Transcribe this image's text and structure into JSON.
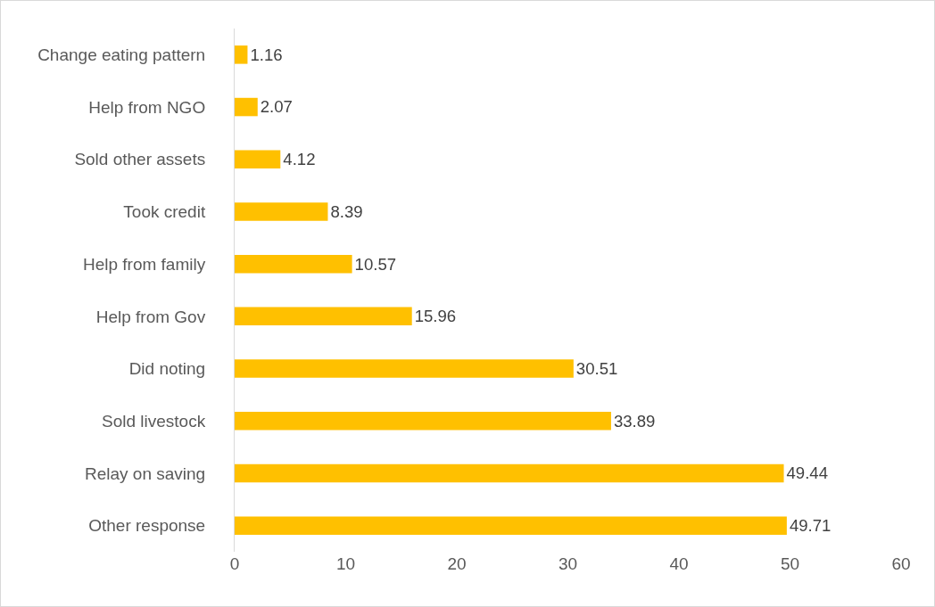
{
  "chart_data": {
    "type": "bar",
    "orientation": "horizontal",
    "categories": [
      "Change eating pattern",
      "Help from NGO",
      "Sold other assets",
      "Took credit",
      "Help from family",
      "Help from Gov",
      "Did noting",
      "Sold livestock",
      "Relay on saving",
      "Other response"
    ],
    "values": [
      1.16,
      2.07,
      4.12,
      8.39,
      10.57,
      15.96,
      30.51,
      33.89,
      49.44,
      49.71
    ],
    "color": "#ffc000",
    "xlim": [
      0,
      60
    ],
    "xticks": [
      0,
      10,
      20,
      30,
      40,
      50,
      60
    ],
    "grid": false,
    "data_labels": true
  }
}
